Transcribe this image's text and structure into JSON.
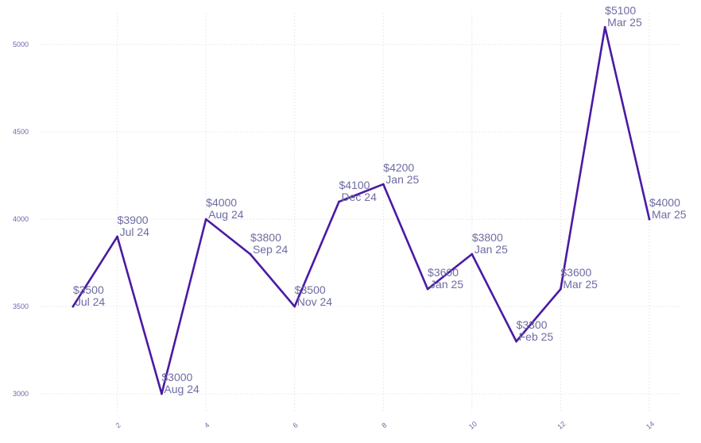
{
  "chart_data": {
    "type": "line",
    "title": "",
    "xlabel": "",
    "ylabel": "",
    "x": [
      1,
      2,
      3,
      4,
      5,
      6,
      7,
      8,
      9,
      10,
      11,
      12,
      13,
      14
    ],
    "values": [
      3500,
      3900,
      3000,
      4000,
      3800,
      3500,
      4100,
      4200,
      3600,
      3800,
      3300,
      3600,
      5100,
      4000
    ],
    "point_labels": [
      {
        "amount": "$3500",
        "month": "Jul 24"
      },
      {
        "amount": "$3900",
        "month": "Jul 24"
      },
      {
        "amount": "$3000",
        "month": "Aug 24"
      },
      {
        "amount": "$4000",
        "month": "Aug 24"
      },
      {
        "amount": "$3800",
        "month": "Sep 24"
      },
      {
        "amount": "$3500",
        "month": "Nov 24"
      },
      {
        "amount": "$4100",
        "month": "Dec 24"
      },
      {
        "amount": "$4200",
        "month": "Jan 25"
      },
      {
        "amount": "$3600",
        "month": "Jan 25"
      },
      {
        "amount": "$3800",
        "month": "Jan 25"
      },
      {
        "amount": "$3300",
        "month": "Feb 25"
      },
      {
        "amount": "$3600",
        "month": "Mar 25"
      },
      {
        "amount": "$5100",
        "month": "Mar 25"
      },
      {
        "amount": "$4000",
        "month": "Mar 25"
      }
    ],
    "xlim": [
      0.25,
      14.7
    ],
    "ylim": [
      2900,
      5210
    ],
    "xticks": [
      2,
      4,
      6,
      8,
      10,
      12,
      14
    ],
    "yticks": [
      3000,
      3500,
      4000,
      4500,
      5000
    ],
    "grid": true,
    "line_color": "#4a1aa3"
  }
}
